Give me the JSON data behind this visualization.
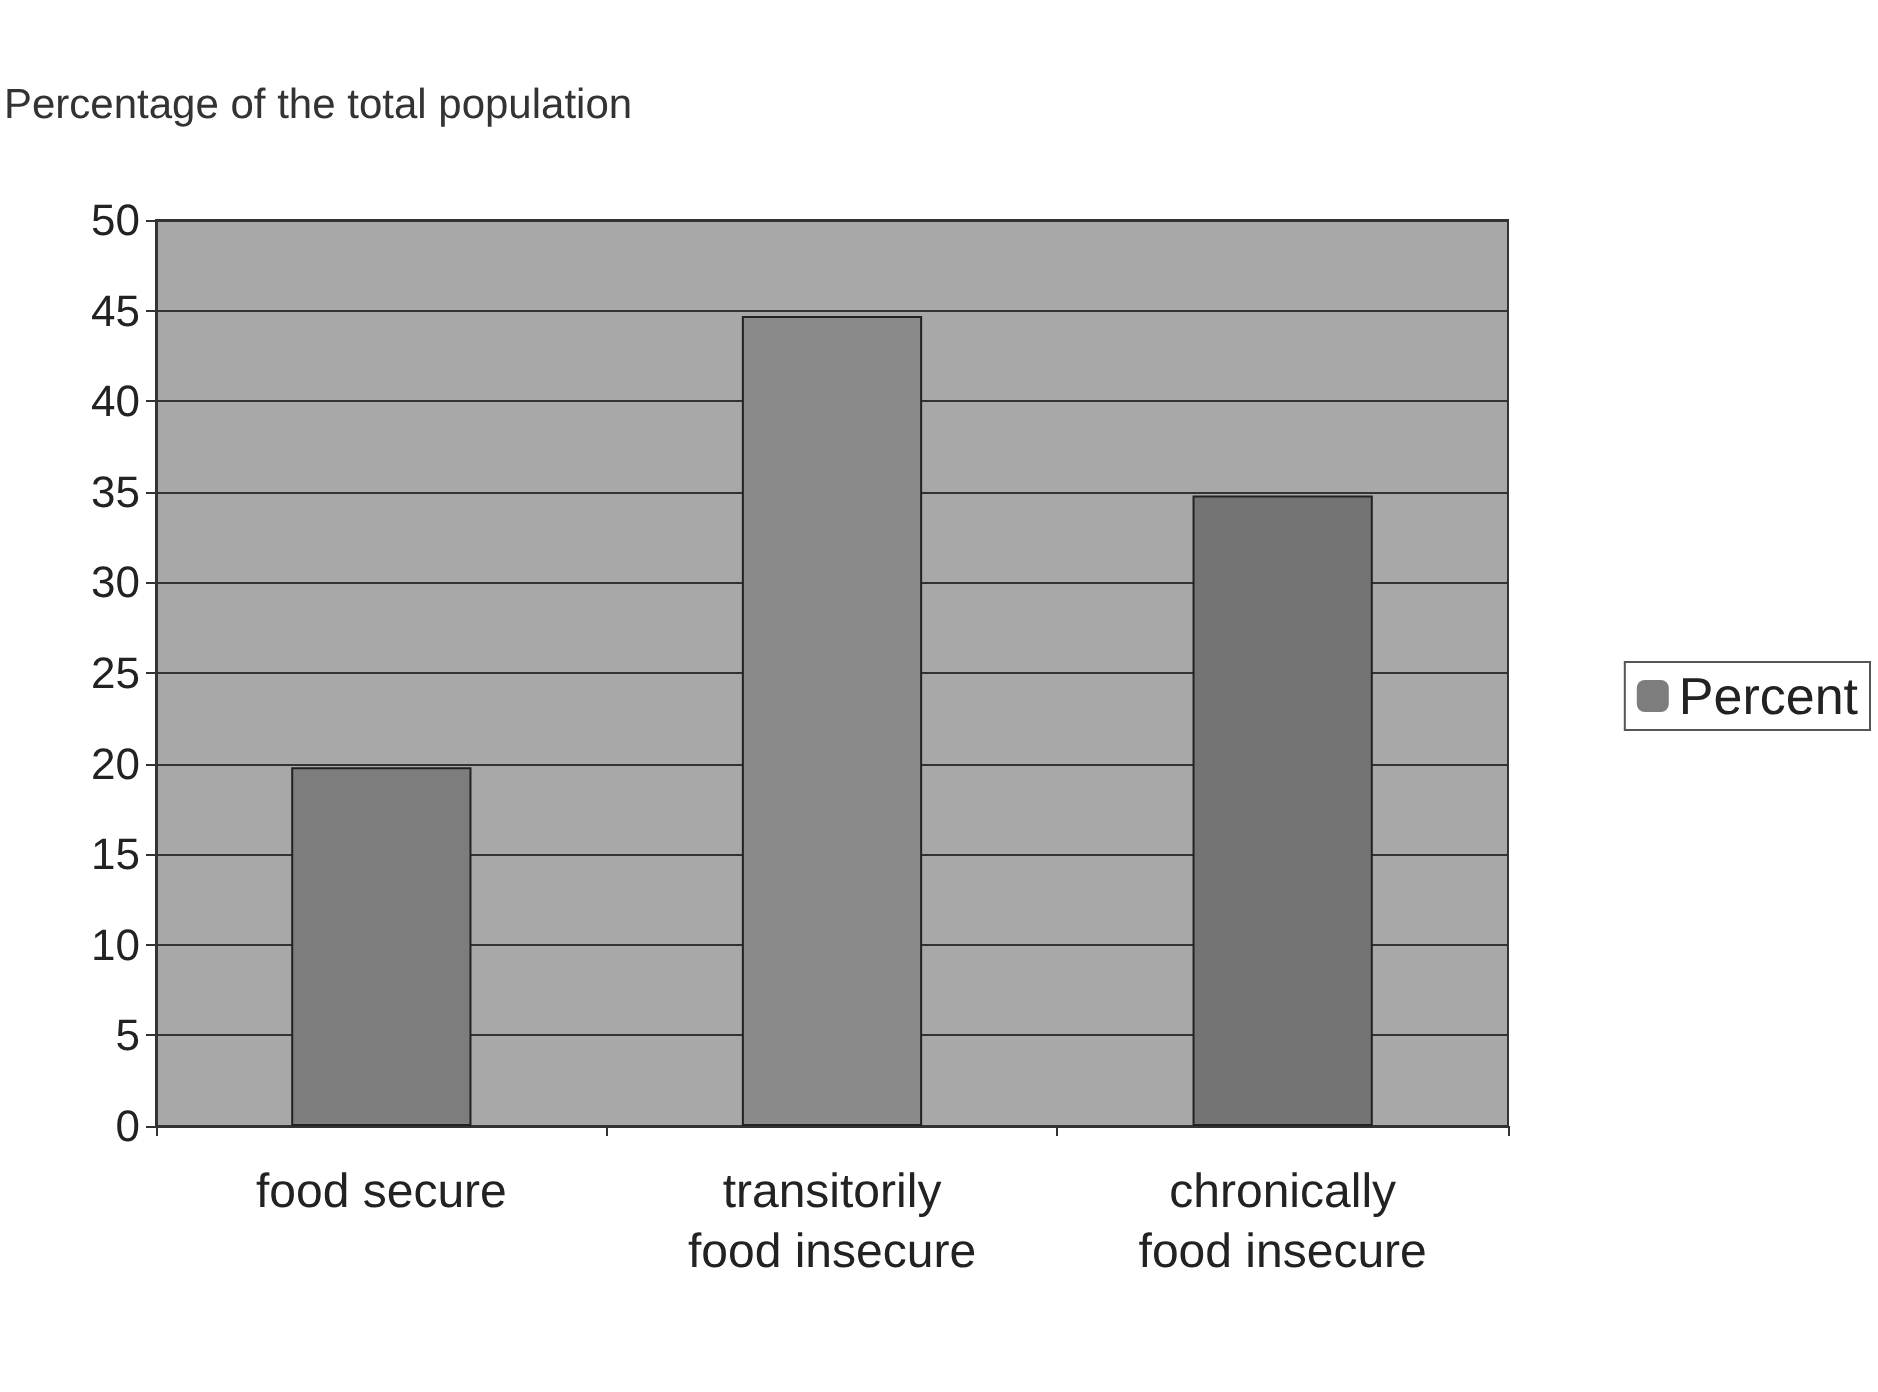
{
  "chart_data": {
    "type": "bar",
    "ylabel": "Percentage of the total population",
    "categories": [
      "food secure",
      "transitorily\nfood insecure",
      "chronically\nfood insecure"
    ],
    "series": [
      {
        "name": "Percent",
        "color": "#7d7d7d",
        "colors": [
          "#7d7d7d",
          "#8a8a8a",
          "#747474"
        ],
        "values": [
          19.8,
          44.7,
          34.8
        ]
      }
    ],
    "ylim": [
      0,
      50
    ],
    "yticks": [
      0,
      5,
      10,
      15,
      20,
      25,
      30,
      35,
      40,
      45,
      50
    ],
    "grid": "y",
    "legend": "right"
  }
}
